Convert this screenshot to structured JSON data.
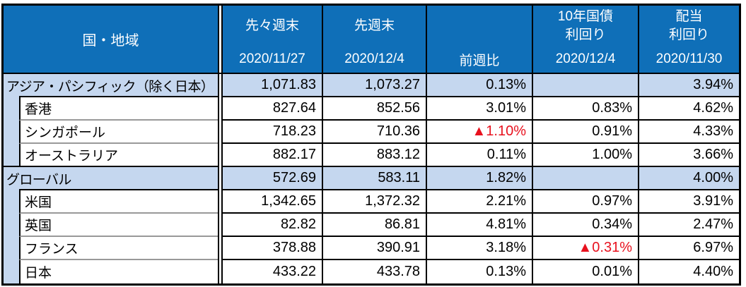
{
  "table": {
    "header": {
      "region_label": "国・地域",
      "columns": [
        {
          "title": "先々週末",
          "date": "2020/11/27"
        },
        {
          "title": "先週末",
          "date": "2020/12/4"
        },
        {
          "title": "",
          "date": "前週比"
        },
        {
          "title": "10年国債\n利回り",
          "date": "2020/12/4"
        },
        {
          "title": "配当\n利回り",
          "date": "2020/11/30"
        }
      ]
    },
    "rows": [
      {
        "label": "アジア・パシフィック（除く日本）",
        "group": true,
        "values": [
          "1,071.83",
          "1,073.27",
          "0.13%",
          "",
          "3.94%"
        ]
      },
      {
        "label": "香港",
        "group": false,
        "values": [
          "827.64",
          "852.56",
          "3.01%",
          "0.83%",
          "4.62%"
        ]
      },
      {
        "label": "シンガポール",
        "group": false,
        "values": [
          "718.23",
          "710.36",
          "▲1.10%",
          "0.91%",
          "4.33%"
        ]
      },
      {
        "label": "オーストラリア",
        "group": false,
        "values": [
          "882.17",
          "883.12",
          "0.11%",
          "1.00%",
          "3.66%"
        ]
      },
      {
        "label": "グローバル",
        "group": true,
        "values": [
          "572.69",
          "583.11",
          "1.82%",
          "",
          "4.00%"
        ]
      },
      {
        "label": "米国",
        "group": false,
        "values": [
          "1,342.65",
          "1,372.32",
          "2.21%",
          "0.97%",
          "3.91%"
        ]
      },
      {
        "label": "英国",
        "group": false,
        "values": [
          "82.82",
          "86.81",
          "4.81%",
          "0.34%",
          "2.47%"
        ]
      },
      {
        "label": "フランス",
        "group": false,
        "values": [
          "378.88",
          "390.91",
          "3.18%",
          "▲0.31%",
          "6.97%"
        ]
      },
      {
        "label": "日本",
        "group": false,
        "values": [
          "433.22",
          "433.78",
          "0.13%",
          "0.01%",
          "4.40%"
        ]
      }
    ]
  },
  "colors": {
    "header_bg": "#0f6fb8",
    "group_row_bg": "#c5d7ef",
    "negative": "#e8111e",
    "border": "#000000",
    "subrow_divider": "#999999"
  }
}
